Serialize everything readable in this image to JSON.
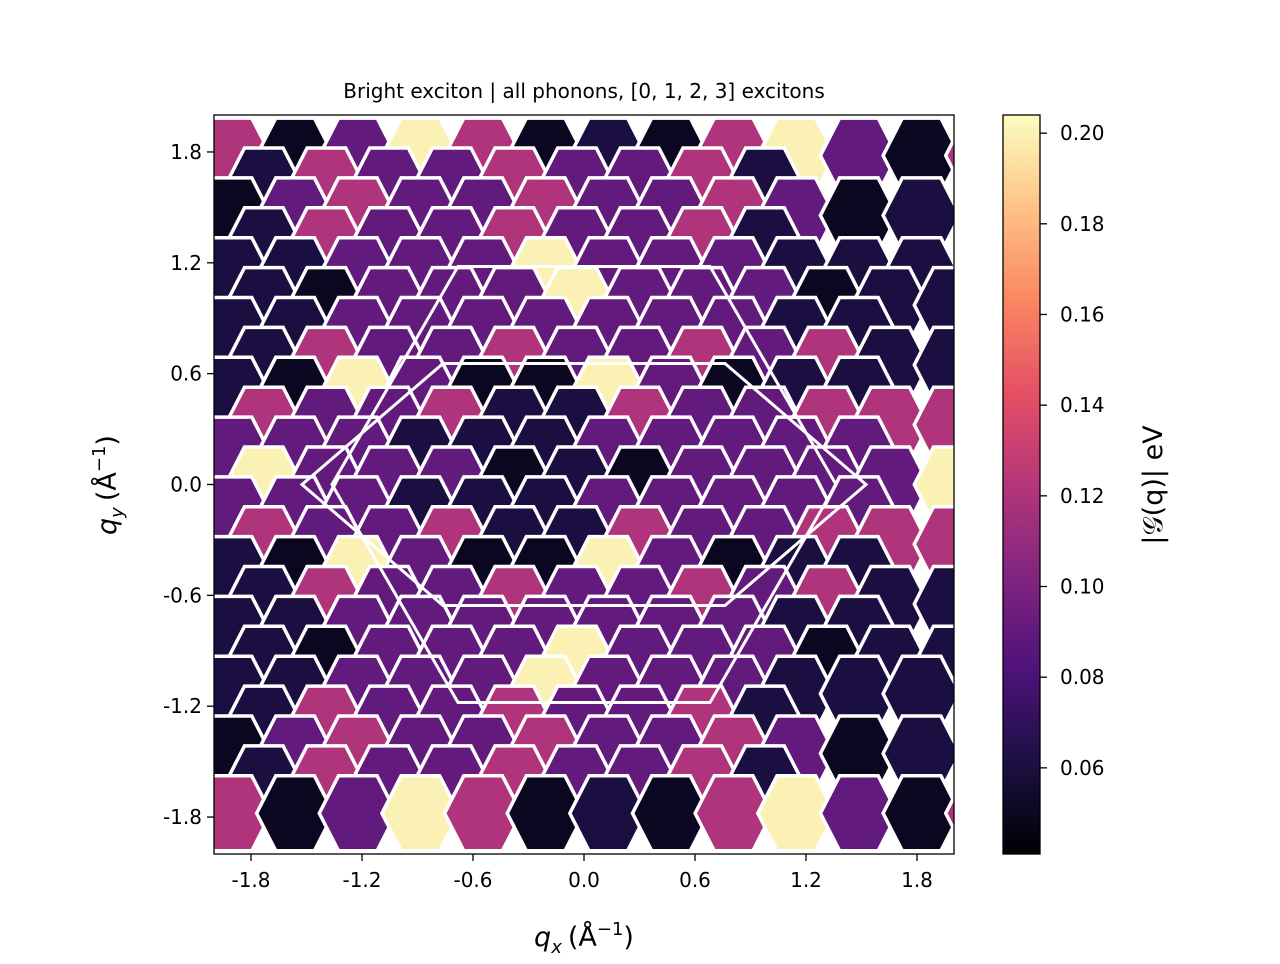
{
  "chart_data": {
    "type": "heatmap",
    "title": "Bright exciton | all phonons, [0, 1, 2, 3] excitons",
    "xlabel_main": "q",
    "xlabel_sub": "x",
    "xlabel_units": "(Å",
    "xlabel_exp": "−1",
    "xlabel_close": ")",
    "ylabel_main": "q",
    "ylabel_sub": "y",
    "ylabel_units": "(Å",
    "ylabel_exp": "−1",
    "ylabel_close": ")",
    "xlim": [
      -2.0,
      2.0
    ],
    "ylim": [
      -2.0,
      2.0
    ],
    "x_ticks": [
      -1.8,
      -1.2,
      -0.6,
      0.0,
      0.6,
      1.2,
      1.8
    ],
    "x_tick_labels": [
      "-1.8",
      "-1.2",
      "-0.6",
      "0.0",
      "0.6",
      "1.2",
      "1.8"
    ],
    "y_ticks": [
      -1.8,
      -1.2,
      -0.6,
      0.0,
      0.6,
      1.2,
      1.8
    ],
    "y_tick_labels": [
      "-1.8",
      "-1.2",
      "-0.6",
      "0.0",
      "0.6",
      "1.2",
      "1.8"
    ],
    "colorbar": {
      "label": "|𝒢(q)| eV",
      "colormap": "magma",
      "vmin": 0.041,
      "vmax": 0.204,
      "ticks": [
        0.06,
        0.08,
        0.1,
        0.12,
        0.14,
        0.16,
        0.18,
        0.2
      ],
      "tick_labels": [
        "0.06",
        "0.08",
        "0.10",
        "0.12",
        "0.14",
        "0.16",
        "0.18",
        "0.20"
      ]
    },
    "hex_grid": {
      "dx": 0.3386,
      "dy": 0.1951,
      "comment_rows": "row 0 is top (y ≈ 1.8); even rows centered at x = -1.9 + 0.3386*i, odd rows at x = -1.731 + 0.3386*i",
      "rows": [
        [
          0.12,
          0.05,
          0.09,
          0.2,
          0.12,
          0.05,
          0.06,
          0.05,
          0.12,
          0.2,
          0.09,
          0.05,
          0.12
        ],
        [
          0.06,
          0.12,
          0.09,
          0.09,
          0.12,
          0.09,
          0.09,
          0.12,
          0.06
        ],
        [
          0.05,
          0.09,
          0.12,
          0.09,
          0.09,
          0.12,
          0.09,
          0.09,
          0.12,
          0.09,
          0.05,
          0.06
        ],
        [
          0.06,
          0.12,
          0.09,
          0.09,
          0.12,
          0.09,
          0.09,
          0.12,
          0.06
        ],
        [
          0.06,
          0.06,
          0.09,
          0.09,
          0.09,
          0.2,
          0.09,
          0.09,
          0.09,
          0.06,
          0.06,
          0.06
        ],
        [
          0.06,
          0.05,
          0.09,
          0.09,
          0.09,
          0.2,
          0.09,
          0.09,
          0.09,
          0.05,
          0.06,
          0.06
        ],
        [
          0.06,
          0.06,
          0.09,
          0.09,
          0.09,
          0.09,
          0.09,
          0.09,
          0.09,
          0.06,
          0.06
        ],
        [
          0.06,
          0.12,
          0.09,
          0.09,
          0.12,
          0.09,
          0.09,
          0.12,
          0.09,
          0.12,
          0.06,
          0.06
        ],
        [
          0.06,
          0.05,
          0.2,
          0.09,
          0.05,
          0.05,
          0.2,
          0.09,
          0.05,
          0.06,
          0.06
        ],
        [
          0.12,
          0.09,
          0.09,
          0.12,
          0.06,
          0.06,
          0.12,
          0.09,
          0.09,
          0.12,
          0.12,
          0.12
        ],
        [
          0.09,
          0.09,
          0.09,
          0.06,
          0.06,
          0.06,
          0.09,
          0.09,
          0.09,
          0.09,
          0.09
        ],
        [
          0.2,
          0.09,
          0.09,
          0.09,
          0.05,
          0.06,
          0.05,
          0.09,
          0.09,
          0.09,
          0.09,
          0.2
        ],
        [
          0.09,
          0.09,
          0.09,
          0.06,
          0.06,
          0.06,
          0.09,
          0.09,
          0.09,
          0.09,
          0.09
        ],
        [
          0.12,
          0.09,
          0.09,
          0.12,
          0.06,
          0.06,
          0.12,
          0.09,
          0.09,
          0.12,
          0.12,
          0.12
        ],
        [
          0.06,
          0.05,
          0.2,
          0.09,
          0.05,
          0.05,
          0.2,
          0.09,
          0.05,
          0.06,
          0.06
        ],
        [
          0.06,
          0.12,
          0.09,
          0.09,
          0.12,
          0.09,
          0.09,
          0.12,
          0.09,
          0.12,
          0.06,
          0.06
        ],
        [
          0.06,
          0.06,
          0.09,
          0.09,
          0.09,
          0.09,
          0.09,
          0.09,
          0.09,
          0.06,
          0.06
        ],
        [
          0.06,
          0.05,
          0.09,
          0.09,
          0.09,
          0.2,
          0.09,
          0.09,
          0.09,
          0.05,
          0.06,
          0.06
        ],
        [
          0.06,
          0.06,
          0.09,
          0.09,
          0.09,
          0.2,
          0.09,
          0.09,
          0.09,
          0.06,
          0.06,
          0.06
        ],
        [
          0.06,
          0.12,
          0.09,
          0.09,
          0.12,
          0.09,
          0.09,
          0.12,
          0.06
        ],
        [
          0.05,
          0.09,
          0.12,
          0.09,
          0.09,
          0.12,
          0.09,
          0.09,
          0.12,
          0.09,
          0.05,
          0.06
        ],
        [
          0.06,
          0.12,
          0.09,
          0.09,
          0.12,
          0.09,
          0.09,
          0.12,
          0.06
        ],
        [
          0.12,
          0.05,
          0.09,
          0.2,
          0.12,
          0.05,
          0.06,
          0.05,
          0.12,
          0.2,
          0.09,
          0.05,
          0.12
        ]
      ]
    }
  }
}
